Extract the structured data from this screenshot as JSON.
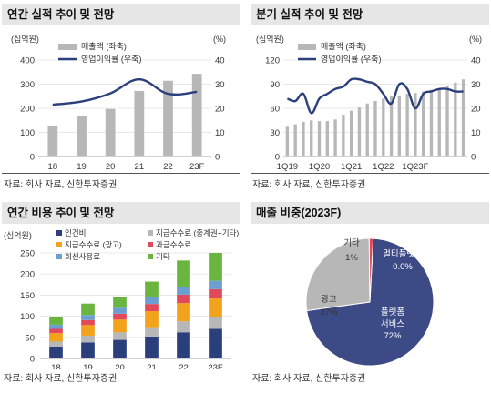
{
  "panels": {
    "p1": {
      "title": "연간 실적 추이 및 전망",
      "source": "자료: 회사 자료, 신한투자증권"
    },
    "p2": {
      "title": "분기 실적 추이 및 전망",
      "source": "자료: 회사 자료, 신한투자증권"
    },
    "p3": {
      "title": "연간 비용 추이 및 전망",
      "source": "자료: 회사 자료, 신한투자증권"
    },
    "p4": {
      "title": "매출 비중(2023F)",
      "source": "자료: 회사 자료, 신한투자증권"
    }
  },
  "chart_data": [
    {
      "type": "bar+line",
      "title": "연간 실적 추이 및 전망",
      "left_unit": "(십억원)",
      "right_unit": "(%)",
      "categories": [
        "18",
        "19",
        "20",
        "21",
        "22",
        "23F"
      ],
      "left_ticks": [
        "0",
        "100",
        "200",
        "300",
        "400"
      ],
      "right_ticks": [
        "0",
        "10",
        "20",
        "30",
        "40"
      ],
      "ylim_left": [
        0,
        400
      ],
      "ylim_right": [
        0,
        40
      ],
      "series": [
        {
          "name": "매출액 (좌축)",
          "kind": "bar",
          "axis": "left",
          "color": "#b7b7b7",
          "values": [
            125,
            167,
            197,
            272,
            314,
            343
          ]
        },
        {
          "name": "영업이익률 (우축)",
          "kind": "line",
          "axis": "right",
          "color": "#2b3f7c",
          "values": [
            21.5,
            22.8,
            26.2,
            32.0,
            26.0,
            26.8
          ]
        }
      ]
    },
    {
      "type": "bar+line",
      "title": "분기 실적 추이 및 전망",
      "left_unit": "(십억원)",
      "right_unit": "(%)",
      "x_tick_labels": [
        "1Q19",
        "1Q20",
        "1Q21",
        "1Q22",
        "1Q23F"
      ],
      "left_ticks": [
        "0",
        "30",
        "60",
        "90",
        "120"
      ],
      "right_ticks": [
        "0",
        "10",
        "20",
        "30",
        "40"
      ],
      "ylim_left": [
        0,
        120
      ],
      "ylim_right": [
        0,
        40
      ],
      "series": [
        {
          "name": "매출액 (좌축)",
          "kind": "bar",
          "axis": "left",
          "color": "#b7b7b7",
          "values": [
            37,
            40,
            43,
            45,
            44,
            44,
            46,
            52,
            57,
            61,
            66,
            69,
            72,
            75,
            76,
            78,
            79,
            81,
            83,
            85,
            88,
            92,
            96
          ]
        },
        {
          "name": "영업이익률 (우축)",
          "kind": "line",
          "axis": "right",
          "color": "#2b3f7c",
          "values": [
            24,
            23,
            26,
            18,
            24,
            26,
            28,
            29,
            32,
            32,
            31,
            30,
            26,
            22,
            30,
            28,
            20,
            26,
            27,
            28,
            28,
            27,
            27
          ]
        }
      ]
    },
    {
      "type": "stacked-bar",
      "title": "연간 비용 추이 및 전망",
      "left_unit": "(십억원)",
      "categories": [
        "18",
        "19",
        "20",
        "21",
        "22",
        "23F"
      ],
      "left_ticks": [
        "0",
        "50",
        "100",
        "150",
        "200",
        "250"
      ],
      "ylim": [
        0,
        250
      ],
      "legend": [
        {
          "name": "인건비",
          "color": "#2b3f7c"
        },
        {
          "name": "지급수수료 (중계권+기타)",
          "color": "#b7b7b7"
        },
        {
          "name": "지급수수료 (광고)",
          "color": "#f3a21b"
        },
        {
          "name": "과금수수료",
          "color": "#e24a5b"
        },
        {
          "name": "회선사용료",
          "color": "#6a9fd0"
        },
        {
          "name": "기타",
          "color": "#6ab540"
        }
      ],
      "series": [
        {
          "name": "인건비",
          "values": [
            28,
            38,
            44,
            52,
            62,
            70
          ]
        },
        {
          "name": "지급수수료 (중계권+기타)",
          "values": [
            12,
            16,
            18,
            22,
            26,
            27
          ]
        },
        {
          "name": "지급수수료 (광고)",
          "values": [
            20,
            25,
            30,
            38,
            43,
            45
          ]
        },
        {
          "name": "과금수수료",
          "values": [
            10,
            12,
            14,
            17,
            20,
            22
          ]
        },
        {
          "name": "회선사용료",
          "values": [
            10,
            12,
            14,
            16,
            18,
            20
          ]
        },
        {
          "name": "기타",
          "values": [
            18,
            27,
            25,
            37,
            63,
            66
          ]
        }
      ]
    },
    {
      "type": "pie",
      "title": "매출 비중(2023F)",
      "slices": [
        {
          "name": "플랫폼 서비스",
          "line1": "플랫폼",
          "line2": "서비스",
          "pct_label": "72%",
          "value": 72,
          "color": "#3c4a86"
        },
        {
          "name": "광고",
          "line1": "광고",
          "line2": "",
          "pct_label": "27%",
          "value": 27,
          "color": "#b7b7b7"
        },
        {
          "name": "기타",
          "line1": "기타",
          "line2": "",
          "pct_label": "1%",
          "value": 1,
          "color": "#e24a5b"
        },
        {
          "name": "멀티플랫폼",
          "line1": "멀티플랫폼",
          "line2": "",
          "pct_label": "0.0%",
          "value": 0.0,
          "color": "#f3a21b"
        }
      ]
    }
  ]
}
